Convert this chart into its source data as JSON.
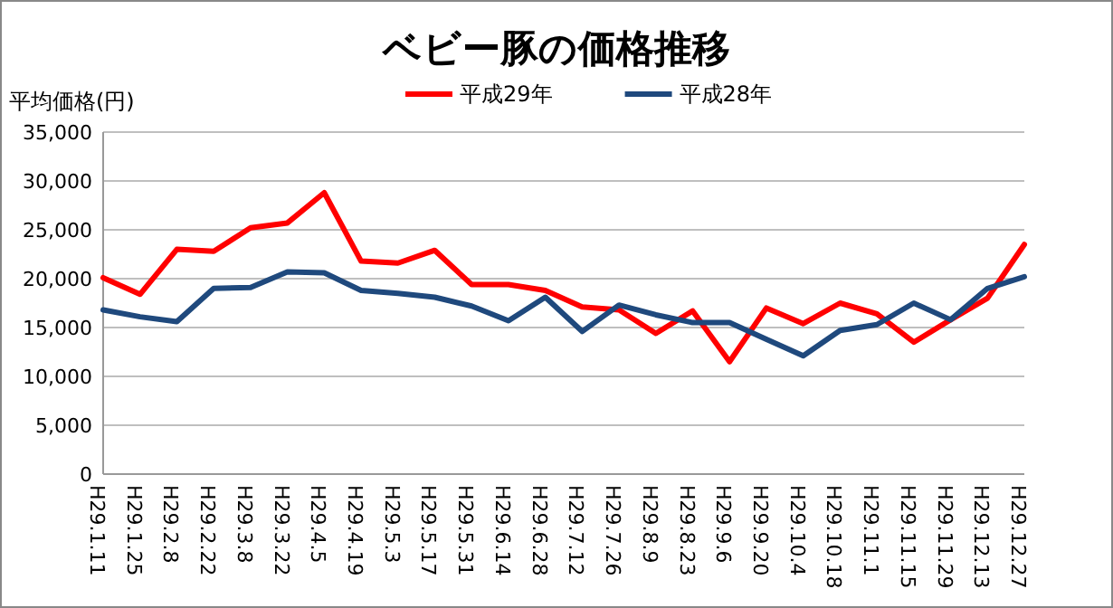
{
  "chart_data": {
    "type": "line",
    "title": "ベビー豚の価格推移",
    "ylabel": "平均価格(円)",
    "categories": [
      "H29.1.11",
      "H29.1.25",
      "H29.2.8",
      "H29.2.22",
      "H29.3.8",
      "H29.3.22",
      "H29.4.5",
      "H29.4.19",
      "H29.5.3",
      "H29.5.17",
      "H29.5.31",
      "H29.6.14",
      "H29.6.28",
      "H29.7.12",
      "H29.7.26",
      "H29.8.9",
      "H29.8.23",
      "H29.9.6",
      "H29.9.20",
      "H29.10.4",
      "H29.10.18",
      "H29.11.1",
      "H29.11.15",
      "H29.11.29",
      "H29.12.13",
      "H29.12.27"
    ],
    "series": [
      {
        "name": "平成29年",
        "color": "#ff0000",
        "values": [
          20100,
          18400,
          23000,
          22800,
          25200,
          25700,
          28800,
          21800,
          21600,
          22900,
          19400,
          19400,
          18800,
          17100,
          16800,
          14400,
          16700,
          11500,
          17000,
          15400,
          17500,
          16400,
          13500,
          15800,
          18000,
          23500
        ]
      },
      {
        "name": "平成28年",
        "color": "#1f497d",
        "values": [
          16800,
          16100,
          15600,
          19000,
          19100,
          20700,
          20600,
          18800,
          18500,
          18100,
          17200,
          15700,
          18100,
          14600,
          17300,
          16300,
          15500,
          15500,
          13800,
          12100,
          14700,
          15300,
          17500,
          15800,
          19000,
          20200
        ]
      }
    ],
    "ylim": [
      0,
      35000
    ],
    "yticks": [
      {
        "value": 0,
        "label": "0"
      },
      {
        "value": 5000,
        "label": "5,000"
      },
      {
        "value": 10000,
        "label": "10,000"
      },
      {
        "value": 15000,
        "label": "15,000"
      },
      {
        "value": 20000,
        "label": "20,000"
      },
      {
        "value": 25000,
        "label": "25,000"
      },
      {
        "value": 30000,
        "label": "30,000"
      },
      {
        "value": 35000,
        "label": "35,000"
      }
    ],
    "grid": "y",
    "legend": "top",
    "marker": "none",
    "line_style": "solid"
  }
}
